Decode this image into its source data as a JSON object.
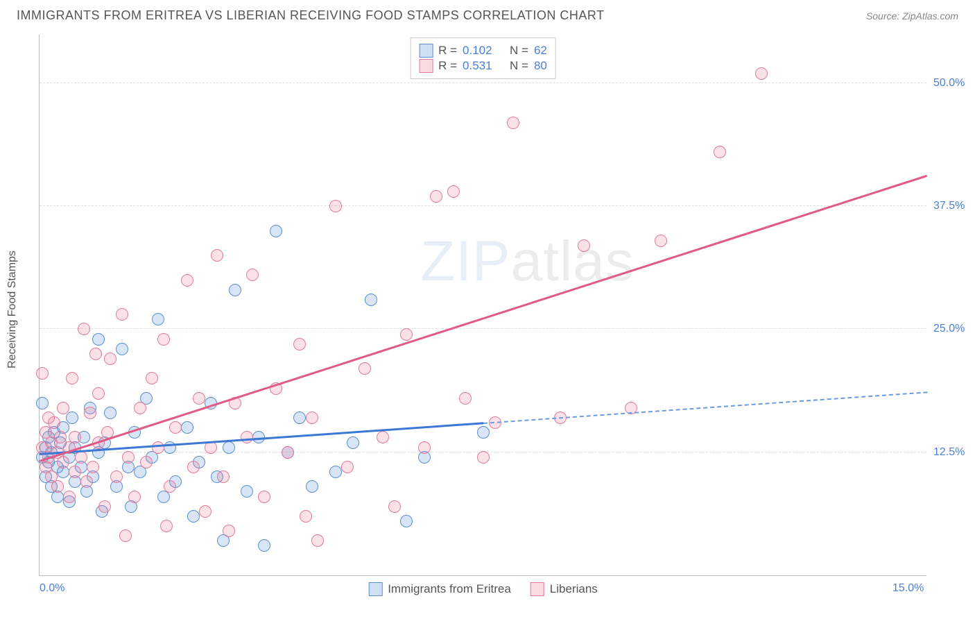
{
  "header": {
    "title": "IMMIGRANTS FROM ERITREA VS LIBERIAN RECEIVING FOOD STAMPS CORRELATION CHART",
    "source": "Source: ZipAtlas.com"
  },
  "watermark": {
    "part1": "ZIP",
    "part2": "atlas"
  },
  "chart": {
    "type": "scatter",
    "y_axis_title": "Receiving Food Stamps",
    "xlim": [
      0,
      15
    ],
    "ylim": [
      0,
      55
    ],
    "x_ticks": [
      {
        "value": 0,
        "label": "0.0%"
      },
      {
        "value": 15,
        "label": "15.0%"
      }
    ],
    "y_ticks": [
      {
        "value": 12.5,
        "label": "12.5%"
      },
      {
        "value": 25.0,
        "label": "25.0%"
      },
      {
        "value": 37.5,
        "label": "37.5%"
      },
      {
        "value": 50.0,
        "label": "50.0%"
      }
    ],
    "grid_color": "#dddddd",
    "background": "#ffffff",
    "point_radius": 9,
    "series": [
      {
        "id": "a",
        "name": "Immigrants from Eritrea",
        "color_fill": "rgba(100,150,220,0.25)",
        "color_stroke": "#5a8ed0",
        "r": 0.102,
        "n": 62,
        "trend": {
          "x0": 0,
          "y0": 12.2,
          "x1": 15,
          "y1": 18.5,
          "solid_until_x": 7.5
        },
        "points": [
          [
            0.05,
            12.0
          ],
          [
            0.05,
            17.5
          ],
          [
            0.1,
            10.0
          ],
          [
            0.1,
            13.0
          ],
          [
            0.15,
            11.5
          ],
          [
            0.15,
            14.0
          ],
          [
            0.2,
            9.0
          ],
          [
            0.2,
            12.5
          ],
          [
            0.25,
            14.5
          ],
          [
            0.3,
            11.0
          ],
          [
            0.3,
            8.0
          ],
          [
            0.35,
            13.5
          ],
          [
            0.4,
            10.5
          ],
          [
            0.4,
            15.0
          ],
          [
            0.5,
            12.0
          ],
          [
            0.5,
            7.5
          ],
          [
            0.55,
            16.0
          ],
          [
            0.6,
            9.5
          ],
          [
            0.6,
            13.0
          ],
          [
            0.7,
            11.0
          ],
          [
            0.75,
            14.0
          ],
          [
            0.8,
            8.5
          ],
          [
            0.85,
            17.0
          ],
          [
            0.9,
            10.0
          ],
          [
            1.0,
            12.5
          ],
          [
            1.0,
            24.0
          ],
          [
            1.05,
            6.5
          ],
          [
            1.1,
            13.5
          ],
          [
            1.2,
            16.5
          ],
          [
            1.3,
            9.0
          ],
          [
            1.4,
            23.0
          ],
          [
            1.5,
            11.0
          ],
          [
            1.55,
            7.0
          ],
          [
            1.6,
            14.5
          ],
          [
            1.7,
            10.5
          ],
          [
            1.8,
            18.0
          ],
          [
            1.9,
            12.0
          ],
          [
            2.0,
            26.0
          ],
          [
            2.1,
            8.0
          ],
          [
            2.2,
            13.0
          ],
          [
            2.3,
            9.5
          ],
          [
            2.5,
            15.0
          ],
          [
            2.6,
            6.0
          ],
          [
            2.7,
            11.5
          ],
          [
            2.9,
            17.5
          ],
          [
            3.0,
            10.0
          ],
          [
            3.1,
            3.5
          ],
          [
            3.2,
            13.0
          ],
          [
            3.3,
            29.0
          ],
          [
            3.5,
            8.5
          ],
          [
            3.7,
            14.0
          ],
          [
            3.8,
            3.0
          ],
          [
            4.0,
            35.0
          ],
          [
            4.2,
            12.5
          ],
          [
            4.4,
            16.0
          ],
          [
            4.6,
            9.0
          ],
          [
            5.0,
            10.5
          ],
          [
            5.3,
            13.5
          ],
          [
            5.6,
            28.0
          ],
          [
            6.2,
            5.5
          ],
          [
            6.5,
            12.0
          ],
          [
            7.5,
            14.5
          ]
        ]
      },
      {
        "id": "b",
        "name": "Liberians",
        "color_fill": "rgba(235,120,150,0.22)",
        "color_stroke": "#e27a9a",
        "r": 0.531,
        "n": 80,
        "trend": {
          "x0": 0,
          "y0": 11.5,
          "x1": 15,
          "y1": 40.5,
          "solid_until_x": 15
        },
        "points": [
          [
            0.05,
            13.0
          ],
          [
            0.05,
            20.5
          ],
          [
            0.1,
            11.0
          ],
          [
            0.1,
            14.5
          ],
          [
            0.15,
            12.0
          ],
          [
            0.15,
            16.0
          ],
          [
            0.2,
            10.0
          ],
          [
            0.2,
            13.5
          ],
          [
            0.25,
            15.5
          ],
          [
            0.3,
            12.5
          ],
          [
            0.3,
            9.0
          ],
          [
            0.35,
            14.0
          ],
          [
            0.4,
            11.5
          ],
          [
            0.4,
            17.0
          ],
          [
            0.5,
            13.0
          ],
          [
            0.5,
            8.0
          ],
          [
            0.55,
            20.0
          ],
          [
            0.6,
            10.5
          ],
          [
            0.6,
            14.0
          ],
          [
            0.7,
            12.0
          ],
          [
            0.75,
            25.0
          ],
          [
            0.8,
            9.5
          ],
          [
            0.85,
            16.5
          ],
          [
            0.9,
            11.0
          ],
          [
            1.0,
            13.5
          ],
          [
            1.0,
            18.5
          ],
          [
            1.1,
            7.0
          ],
          [
            1.15,
            14.5
          ],
          [
            1.2,
            22.0
          ],
          [
            1.3,
            10.0
          ],
          [
            1.4,
            26.5
          ],
          [
            1.5,
            12.0
          ],
          [
            1.6,
            8.0
          ],
          [
            1.7,
            17.0
          ],
          [
            1.8,
            11.5
          ],
          [
            1.9,
            20.0
          ],
          [
            2.0,
            13.0
          ],
          [
            2.1,
            24.0
          ],
          [
            2.2,
            9.0
          ],
          [
            2.3,
            15.0
          ],
          [
            2.5,
            30.0
          ],
          [
            2.6,
            11.0
          ],
          [
            2.7,
            18.0
          ],
          [
            2.8,
            6.5
          ],
          [
            2.9,
            13.0
          ],
          [
            3.0,
            32.5
          ],
          [
            3.1,
            10.0
          ],
          [
            3.3,
            17.5
          ],
          [
            3.5,
            14.0
          ],
          [
            3.6,
            30.5
          ],
          [
            3.8,
            8.0
          ],
          [
            4.0,
            19.0
          ],
          [
            4.2,
            12.5
          ],
          [
            4.4,
            23.5
          ],
          [
            4.6,
            16.0
          ],
          [
            4.7,
            3.5
          ],
          [
            5.0,
            37.5
          ],
          [
            5.2,
            11.0
          ],
          [
            5.5,
            21.0
          ],
          [
            5.8,
            14.0
          ],
          [
            6.0,
            7.0
          ],
          [
            6.2,
            24.5
          ],
          [
            6.5,
            13.0
          ],
          [
            6.7,
            38.5
          ],
          [
            7.0,
            39.0
          ],
          [
            7.2,
            18.0
          ],
          [
            7.5,
            12.0
          ],
          [
            7.7,
            15.5
          ],
          [
            8.0,
            46.0
          ],
          [
            8.8,
            16.0
          ],
          [
            9.2,
            33.5
          ],
          [
            10.0,
            17.0
          ],
          [
            10.5,
            34.0
          ],
          [
            11.5,
            43.0
          ],
          [
            12.2,
            51.0
          ],
          [
            3.2,
            4.5
          ],
          [
            4.5,
            6.0
          ],
          [
            1.45,
            4.0
          ],
          [
            2.15,
            5.0
          ],
          [
            0.95,
            22.5
          ]
        ]
      }
    ]
  },
  "legend_top": {
    "r_label": "R =",
    "n_label": "N ="
  }
}
